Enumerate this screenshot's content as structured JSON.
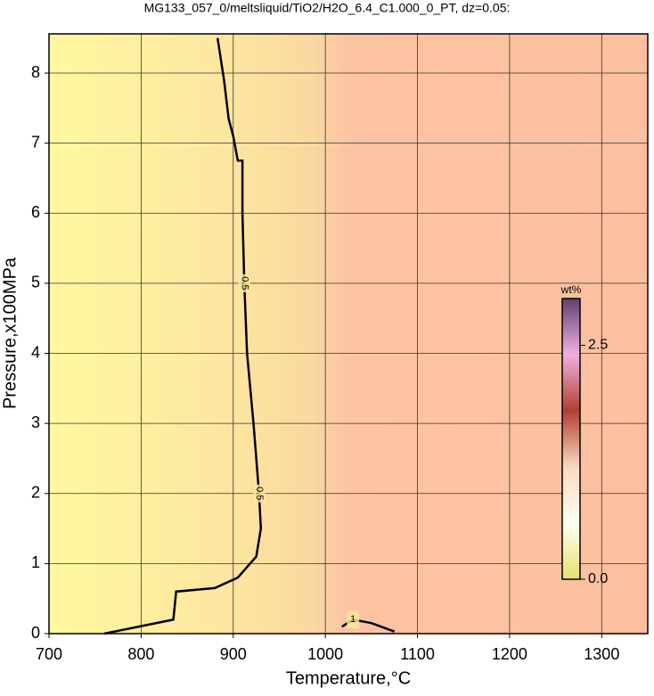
{
  "chart_data": {
    "type": "contour",
    "title": "MG133_057_0/meltsliquid/TiO2/H2O_6.4_C1.000_0_PT, dz=0.05:",
    "x_label": "Temperature,°C",
    "y_label": "Pressure,x100MPa",
    "xlim": [
      700,
      1350
    ],
    "xticks": [
      700,
      800,
      900,
      1000,
      1100,
      1200,
      1300
    ],
    "ylim": [
      0,
      8.56
    ],
    "yticks": [
      0,
      1,
      2,
      3,
      4,
      5,
      6,
      7,
      8
    ],
    "grid": true,
    "contours": [
      {
        "level": 0.5,
        "x": [
          760,
          835,
          838,
          880,
          905,
          925,
          930,
          928,
          922,
          915,
          912,
          910,
          910,
          905,
          900,
          895,
          890,
          883
        ],
        "y": [
          0,
          0.2,
          0.6,
          0.65,
          0.8,
          1.1,
          1.5,
          2,
          3,
          4,
          5,
          6,
          6.75,
          6.75,
          7.1,
          7.35,
          7.9,
          8.5
        ]
      },
      {
        "level": 1,
        "x": [
          1018,
          1030,
          1050,
          1075
        ],
        "y": [
          0.1,
          0.2,
          0.15,
          0.03
        ]
      }
    ],
    "colorbar": {
      "label": "wt%",
      "zlim": [
        0,
        3.0
      ],
      "ticks": [
        {
          "value": 0,
          "label": "0.0"
        },
        2.5
      ],
      "colormap": [
        "#e8e070",
        "#fffff0",
        "#fbd8c0",
        "#b04030",
        "#f0b0e0",
        "#604070"
      ]
    }
  }
}
